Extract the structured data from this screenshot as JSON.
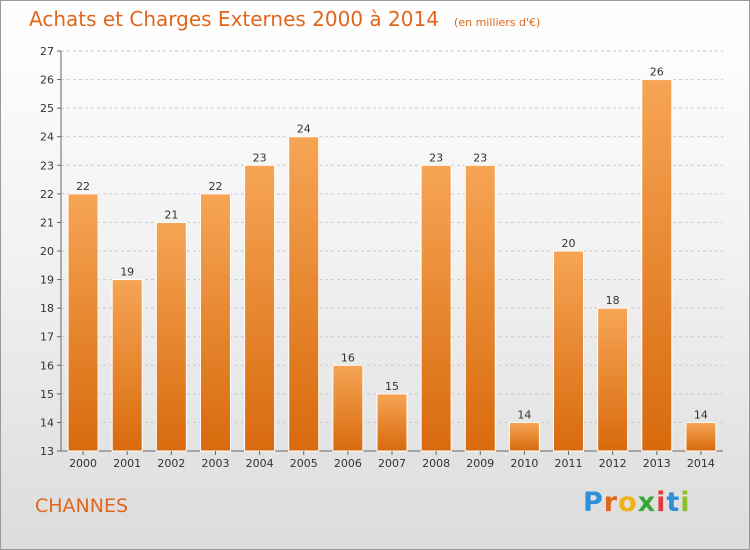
{
  "header": {
    "title": "Achats et Charges Externes 2000 à 2014",
    "subtitle": "(en milliers d'€)"
  },
  "place": "CHANNES",
  "logo": {
    "letters": [
      "P",
      "r",
      "o",
      "x",
      "i",
      "t",
      "i"
    ],
    "colors": [
      "#2f8fd8",
      "#e0661c",
      "#f0b316",
      "#3aa835",
      "#e23a3a",
      "#2f8fd8",
      "#8dbf2a"
    ]
  },
  "colors": {
    "bar_top": "#f6a555",
    "bar_bottom": "#d86a0d",
    "text_accent": "#e0661c"
  },
  "chart_data": {
    "type": "bar",
    "categories": [
      "2000",
      "2001",
      "2002",
      "2003",
      "2004",
      "2005",
      "2006",
      "2007",
      "2008",
      "2009",
      "2010",
      "2011",
      "2012",
      "2013",
      "2014"
    ],
    "values": [
      22,
      19,
      21,
      22,
      23,
      24,
      16,
      15,
      23,
      23,
      14,
      20,
      18,
      26,
      14
    ],
    "ylim": [
      13,
      27
    ],
    "yticks": [
      13,
      14,
      15,
      16,
      17,
      18,
      19,
      20,
      21,
      22,
      23,
      24,
      25,
      26,
      27
    ],
    "grid": true
  }
}
